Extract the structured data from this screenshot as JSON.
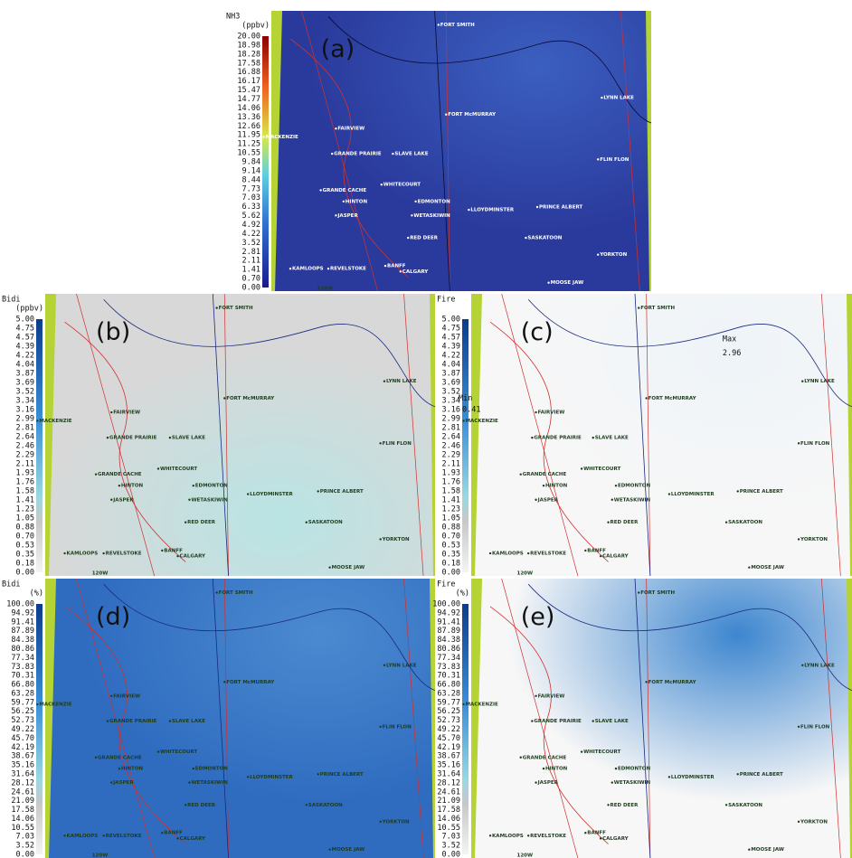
{
  "cities": [
    "FORT SMITH",
    "FORT McMURRAY",
    "LYNN LAKE",
    "FAIRVIEW",
    "MACKENZIE",
    "GRANDE PRAIRIE",
    "SLAVE LAKE",
    "FLIN FLON",
    "GRANDE CACHE",
    "WHITECOURT",
    "HINTON",
    "EDMONTON",
    "LLOYDMINSTER",
    "PRINCE ALBERT",
    "JASPER",
    "WETASKIWIN",
    "RED DEER",
    "SASKATOON",
    "KAMLOOPS",
    "REVELSTOKE",
    "BANFF",
    "CALGARY",
    "YORKTON",
    "MOOSE JAW"
  ],
  "meridian": "120W",
  "panels": [
    {
      "letter": "(a)",
      "variable": "NH3",
      "unit": "(ppbv)",
      "ticks": [
        "20.00",
        "18.98",
        "18.28",
        "17.58",
        "16.88",
        "16.17",
        "15.47",
        "14.77",
        "14.06",
        "13.36",
        "12.66",
        "11.95",
        "11.25",
        "10.55",
        "9.84",
        "9.14",
        "8.44",
        "7.73",
        "7.03",
        "6.33",
        "5.62",
        "4.92",
        "4.22",
        "3.52",
        "2.81",
        "2.11",
        "1.41",
        "0.70",
        "0.00"
      ]
    },
    {
      "letter": "(b)",
      "variable": "Bidi",
      "unit": "(ppbv)",
      "ticks": [
        "5.00",
        "4.75",
        "4.57",
        "4.39",
        "4.22",
        "4.04",
        "3.87",
        "3.69",
        "3.52",
        "3.34",
        "3.16",
        "2.99",
        "2.81",
        "2.64",
        "2.46",
        "2.29",
        "2.11",
        "1.93",
        "1.76",
        "1.58",
        "1.41",
        "1.23",
        "1.05",
        "0.88",
        "0.70",
        "0.53",
        "0.35",
        "0.18",
        "0.00"
      ]
    },
    {
      "letter": "(c)",
      "variable": "Fire",
      "unit": "",
      "ticks": [
        "5.00",
        "4.75",
        "4.57",
        "4.39",
        "4.22",
        "4.04",
        "3.87",
        "3.69",
        "3.52",
        "3.34",
        "3.16",
        "2.99",
        "2.81",
        "2.64",
        "2.46",
        "2.29",
        "2.11",
        "1.93",
        "1.76",
        "1.58",
        "1.41",
        "1.23",
        "1.05",
        "0.88",
        "0.70",
        "0.53",
        "0.35",
        "0.18",
        "0.00"
      ],
      "min_label": "Min",
      "min_value": "0.41",
      "max_label": "Max",
      "max_value": "2.96"
    },
    {
      "letter": "(d)",
      "variable": "Bidi",
      "unit": "(%)",
      "ticks": [
        "100.00",
        "94.92",
        "91.41",
        "87.89",
        "84.38",
        "80.86",
        "77.34",
        "73.83",
        "70.31",
        "66.80",
        "63.28",
        "59.77",
        "56.25",
        "52.73",
        "49.22",
        "45.70",
        "42.19",
        "38.67",
        "35.16",
        "31.64",
        "28.12",
        "24.61",
        "21.09",
        "17.58",
        "14.06",
        "10.55",
        "7.03",
        "3.52",
        "0.00"
      ]
    },
    {
      "letter": "(e)",
      "variable": "Fire",
      "unit": "(%)",
      "ticks": [
        "100.00",
        "94.92",
        "91.41",
        "87.89",
        "84.38",
        "80.86",
        "77.34",
        "73.83",
        "70.31",
        "66.80",
        "63.28",
        "59.77",
        "56.25",
        "52.73",
        "49.22",
        "45.70",
        "42.19",
        "38.67",
        "35.16",
        "31.64",
        "28.12",
        "24.61",
        "21.09",
        "17.58",
        "14.06",
        "10.55",
        "7.03",
        "3.52",
        "0.00"
      ]
    }
  ]
}
